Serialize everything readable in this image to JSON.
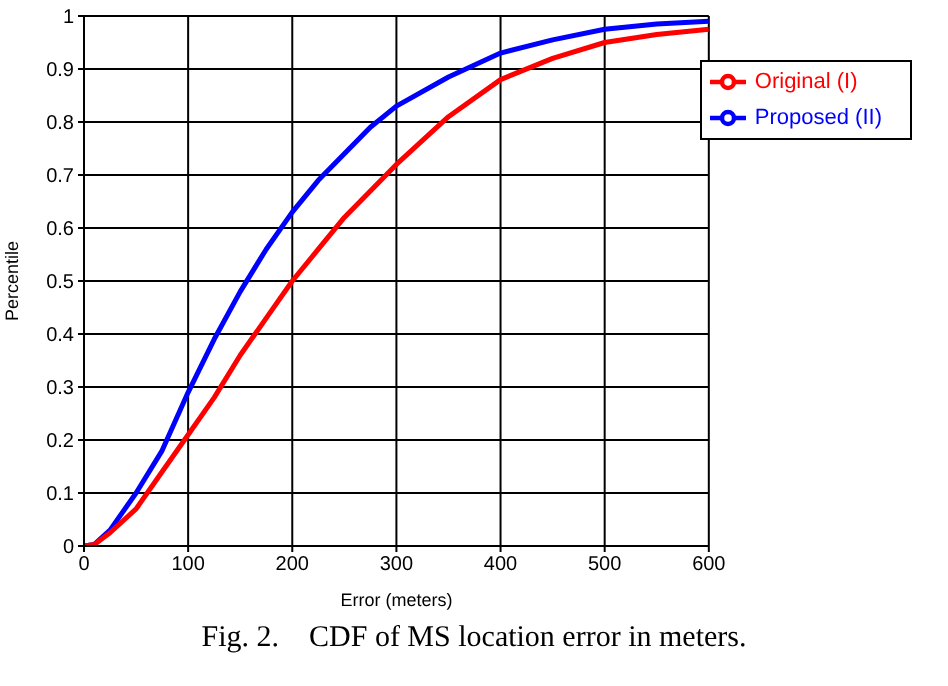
{
  "chart_data": {
    "type": "line",
    "xlabel": "Error (meters)",
    "ylabel": "Percentile",
    "annotations": [
      "Fig. 2.    CDF of MS location error in meters."
    ],
    "x": [
      0,
      10,
      25,
      50,
      75,
      100,
      125,
      150,
      175,
      200,
      225,
      250,
      275,
      300,
      350,
      400,
      450,
      500,
      550,
      600
    ],
    "series": [
      {
        "name": "Proposed (II)",
        "color": "#0000ff",
        "values": [
          0,
          0.003,
          0.03,
          0.1,
          0.18,
          0.29,
          0.39,
          0.48,
          0.56,
          0.63,
          0.69,
          0.74,
          0.79,
          0.83,
          0.885,
          0.93,
          0.955,
          0.975,
          0.985,
          0.99
        ]
      },
      {
        "name": "Original (I)",
        "color": "#ff0000",
        "values": [
          0,
          0.003,
          0.025,
          0.07,
          0.14,
          0.21,
          0.28,
          0.36,
          0.43,
          0.5,
          0.56,
          0.62,
          0.67,
          0.72,
          0.81,
          0.88,
          0.92,
          0.95,
          0.965,
          0.975
        ]
      }
    ],
    "xlim": [
      0,
      600
    ],
    "xticks": [
      0,
      100,
      200,
      300,
      400,
      500,
      600
    ],
    "ylim": [
      0,
      1
    ],
    "yticks": [
      0,
      0.1,
      0.2,
      0.3,
      0.4,
      0.5,
      0.6,
      0.7,
      0.8,
      0.9,
      1
    ],
    "grid": true,
    "legend": "top right",
    "marker": "none",
    "line_style": "solid"
  }
}
